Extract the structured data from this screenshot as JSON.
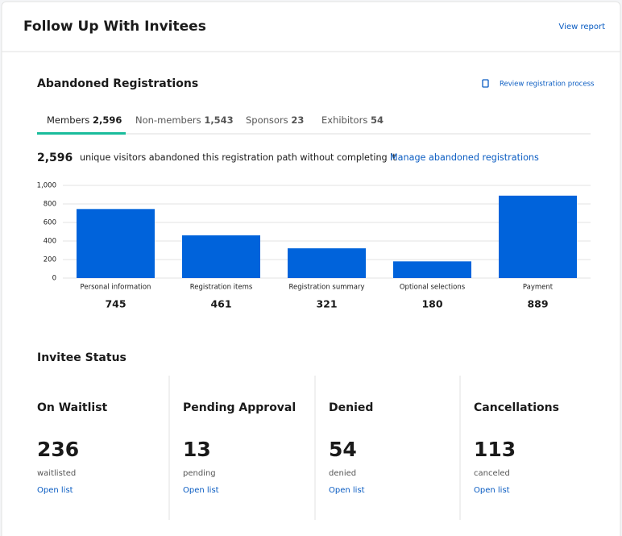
{
  "header": {
    "title": "Follow Up With Invitees",
    "link": "View report"
  },
  "abandoned": {
    "title": "Abandoned Registrations",
    "link": "Review registration process",
    "tabs": [
      {
        "label": "Members",
        "count": "2,596"
      },
      {
        "label": "Non-members",
        "count": "1,543"
      },
      {
        "label": "Sponsors",
        "count": "23"
      },
      {
        "label": "Exhibitors",
        "count": "54"
      }
    ],
    "summary": {
      "count": "2,596",
      "text": "unique visitors abandoned this registration path without completing it",
      "link": "Manage abandoned registrations"
    }
  },
  "chart_data": {
    "type": "bar",
    "categories": [
      "Personal information",
      "Registration items",
      "Registration summary",
      "Optional selections",
      "Payment"
    ],
    "values": [
      745,
      461,
      321,
      180,
      889
    ],
    "color": "#0063db",
    "ylim": [
      0,
      1000
    ],
    "yticks": [
      0,
      200,
      400,
      600,
      800,
      {
        "value": 1000,
        "label": "1,000"
      }
    ],
    "grid": true
  },
  "invitee_status": {
    "title": "Invitee Status",
    "cards": [
      {
        "title": "On Waitlist",
        "count": "236",
        "unit": "waitlisted",
        "link": "Open list"
      },
      {
        "title": "Pending Approval",
        "count": "13",
        "unit": "pending",
        "link": "Open list"
      },
      {
        "title": "Denied",
        "count": "54",
        "unit": "denied",
        "link": "Open list"
      },
      {
        "title": "Cancellations",
        "count": "113",
        "unit": "canceled",
        "link": "Open list"
      }
    ]
  }
}
